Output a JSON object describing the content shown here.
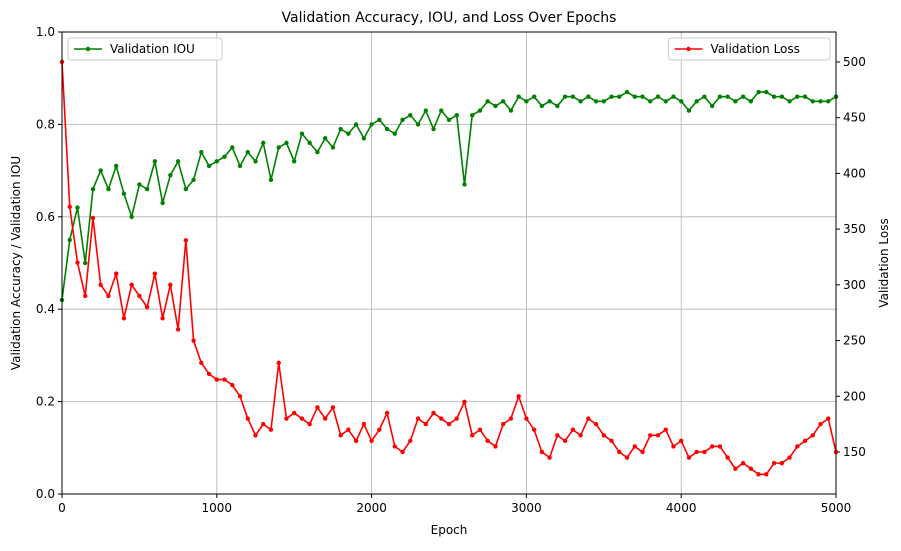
{
  "chart_data": {
    "type": "line",
    "title": "Validation Accuracy, IOU, and Loss Over Epochs",
    "x_label": "Epoch",
    "y_label": "Validation Accuracy / Validation IOU",
    "y2_label": "Validation Loss",
    "x": [
      0,
      50,
      100,
      150,
      200,
      250,
      300,
      350,
      400,
      450,
      500,
      550,
      600,
      650,
      700,
      750,
      800,
      850,
      900,
      950,
      1000,
      1050,
      1100,
      1150,
      1200,
      1250,
      1300,
      1350,
      1400,
      1450,
      1500,
      1550,
      1600,
      1650,
      1700,
      1750,
      1800,
      1850,
      1900,
      1950,
      2000,
      2050,
      2100,
      2150,
      2200,
      2250,
      2300,
      2350,
      2400,
      2450,
      2500,
      2550,
      2600,
      2650,
      2700,
      2750,
      2800,
      2850,
      2900,
      2950,
      3000,
      3050,
      3100,
      3150,
      3200,
      3250,
      3300,
      3350,
      3400,
      3450,
      3500,
      3550,
      3600,
      3650,
      3700,
      3750,
      3800,
      3850,
      3900,
      3950,
      4000,
      4050,
      4100,
      4150,
      4200,
      4250,
      4300,
      4350,
      4400,
      4450,
      4500,
      4550,
      4600,
      4650,
      4700,
      4750,
      4800,
      4850,
      4900,
      4950,
      5000
    ],
    "series": [
      {
        "name": "Validation IOU",
        "color": "#008000",
        "axis": "y",
        "legend": "upper left",
        "values": [
          0.42,
          0.55,
          0.62,
          0.5,
          0.66,
          0.7,
          0.66,
          0.71,
          0.65,
          0.6,
          0.67,
          0.66,
          0.72,
          0.63,
          0.69,
          0.72,
          0.66,
          0.68,
          0.74,
          0.71,
          0.72,
          0.73,
          0.75,
          0.71,
          0.74,
          0.72,
          0.76,
          0.68,
          0.75,
          0.76,
          0.72,
          0.78,
          0.76,
          0.74,
          0.77,
          0.75,
          0.79,
          0.78,
          0.8,
          0.77,
          0.8,
          0.81,
          0.79,
          0.78,
          0.81,
          0.82,
          0.8,
          0.83,
          0.79,
          0.83,
          0.81,
          0.82,
          0.67,
          0.82,
          0.83,
          0.85,
          0.84,
          0.85,
          0.83,
          0.86,
          0.85,
          0.86,
          0.84,
          0.85,
          0.84,
          0.86,
          0.86,
          0.85,
          0.86,
          0.85,
          0.85,
          0.86,
          0.86,
          0.87,
          0.86,
          0.86,
          0.85,
          0.86,
          0.85,
          0.86,
          0.85,
          0.83,
          0.85,
          0.86,
          0.84,
          0.86,
          0.86,
          0.85,
          0.86,
          0.85,
          0.87,
          0.87,
          0.86,
          0.86,
          0.85,
          0.86,
          0.86,
          0.85,
          0.85,
          0.85,
          0.86
        ]
      },
      {
        "name": "Validation Loss",
        "color": "#ff0000",
        "axis": "y2",
        "legend": "upper right",
        "values": [
          500,
          370,
          320,
          290,
          360,
          300,
          290,
          310,
          270,
          300,
          290,
          280,
          310,
          270,
          300,
          260,
          340,
          250,
          230,
          220,
          215,
          215,
          210,
          200,
          180,
          165,
          175,
          170,
          230,
          180,
          185,
          180,
          175,
          190,
          180,
          190,
          165,
          170,
          160,
          175,
          160,
          170,
          185,
          155,
          150,
          160,
          180,
          175,
          185,
          180,
          175,
          180,
          195,
          165,
          170,
          160,
          155,
          175,
          180,
          200,
          180,
          170,
          150,
          145,
          165,
          160,
          170,
          165,
          180,
          175,
          165,
          160,
          150,
          145,
          155,
          150,
          165,
          165,
          170,
          155,
          160,
          145,
          150,
          150,
          155,
          155,
          145,
          135,
          140,
          135,
          130,
          130,
          140,
          140,
          145,
          155,
          160,
          165,
          175,
          180,
          150
        ]
      }
    ],
    "xlim": [
      0,
      5000
    ],
    "xticks": [
      0,
      1000,
      2000,
      3000,
      4000,
      5000
    ],
    "ylim": [
      0,
      1
    ],
    "yticks": [
      {
        "value": 0,
        "label": "0.0"
      },
      {
        "value": 0.2,
        "label": "0.2"
      },
      {
        "value": 0.4,
        "label": "0.4"
      },
      {
        "value": 0.6,
        "label": "0.6"
      },
      {
        "value": 0.8,
        "label": "0.8"
      },
      {
        "value": 1,
        "label": "1.0"
      }
    ],
    "y2lim": [
      112.3,
      526.9
    ],
    "y2ticks": [
      150,
      200,
      250,
      300,
      350,
      400,
      450,
      500
    ],
    "grid": true
  }
}
